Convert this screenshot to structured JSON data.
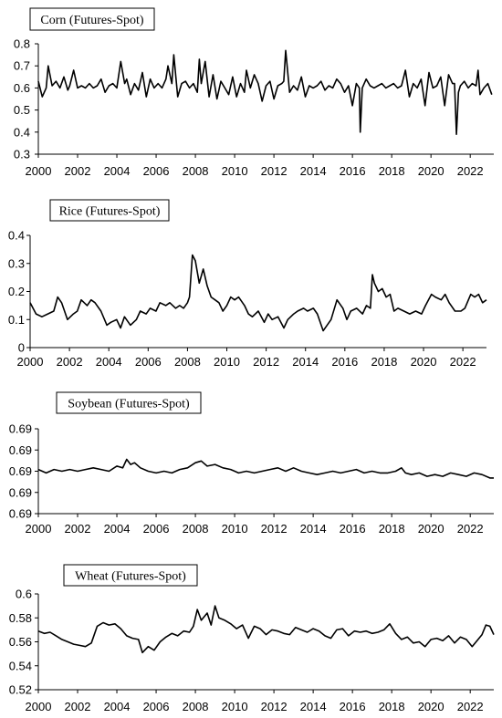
{
  "chart_data": [
    {
      "type": "line",
      "title": "Corn (Futures-Spot)",
      "x_ticks": [
        "2000",
        "2002",
        "2004",
        "2006",
        "2008",
        "2010",
        "2012",
        "2014",
        "2016",
        "2018",
        "2020",
        "2022"
      ],
      "y_ticks": [
        "0.8",
        "0.7",
        "0.6",
        "0.5",
        "0.4",
        "0.3"
      ],
      "ylim": [
        0.3,
        0.8
      ],
      "xlim": [
        2000,
        2023.2
      ],
      "grid": false,
      "series": [
        {
          "color": "#000000",
          "x": [
            2000,
            2000.2,
            2000.4,
            2000.5,
            2000.7,
            2000.9,
            2001.1,
            2001.3,
            2001.5,
            2001.6,
            2001.8,
            2002,
            2002.2,
            2002.4,
            2002.6,
            2002.8,
            2003,
            2003.2,
            2003.4,
            2003.6,
            2003.8,
            2004,
            2004.2,
            2004.4,
            2004.5,
            2004.7,
            2004.9,
            2005.1,
            2005.3,
            2005.5,
            2005.7,
            2005.9,
            2006.1,
            2006.3,
            2006.5,
            2006.6,
            2006.8,
            2006.9,
            2007.1,
            2007.3,
            2007.5,
            2007.7,
            2007.9,
            2008.1,
            2008.2,
            2008.3,
            2008.5,
            2008.7,
            2008.9,
            2009.1,
            2009.3,
            2009.5,
            2009.7,
            2009.9,
            2010.1,
            2010.3,
            2010.5,
            2010.6,
            2010.8,
            2011,
            2011.2,
            2011.4,
            2011.6,
            2011.8,
            2012,
            2012.2,
            2012.4,
            2012.5,
            2012.6,
            2012.8,
            2013,
            2013.2,
            2013.4,
            2013.6,
            2013.8,
            2014,
            2014.2,
            2014.4,
            2014.6,
            2014.8,
            2015,
            2015.2,
            2015.4,
            2015.6,
            2015.8,
            2016,
            2016.2,
            2016.35,
            2016.4,
            2016.5,
            2016.7,
            2016.9,
            2017.1,
            2017.3,
            2017.5,
            2017.7,
            2017.9,
            2018.1,
            2018.3,
            2018.5,
            2018.7,
            2018.9,
            2019.1,
            2019.3,
            2019.5,
            2019.7,
            2019.9,
            2020.1,
            2020.3,
            2020.5,
            2020.7,
            2020.9,
            2021.1,
            2021.2,
            2021.3,
            2021.4,
            2021.5,
            2021.7,
            2021.9,
            2022.1,
            2022.3,
            2022.4,
            2022.5,
            2022.7,
            2022.9,
            2023.1
          ],
          "y": [
            0.63,
            0.56,
            0.6,
            0.7,
            0.61,
            0.63,
            0.6,
            0.65,
            0.59,
            0.61,
            0.68,
            0.6,
            0.61,
            0.6,
            0.62,
            0.6,
            0.61,
            0.64,
            0.58,
            0.61,
            0.62,
            0.6,
            0.72,
            0.62,
            0.64,
            0.57,
            0.62,
            0.59,
            0.67,
            0.56,
            0.64,
            0.6,
            0.62,
            0.6,
            0.64,
            0.7,
            0.62,
            0.75,
            0.56,
            0.62,
            0.63,
            0.6,
            0.62,
            0.58,
            0.73,
            0.62,
            0.72,
            0.56,
            0.66,
            0.55,
            0.63,
            0.6,
            0.57,
            0.65,
            0.56,
            0.62,
            0.58,
            0.68,
            0.6,
            0.66,
            0.62,
            0.54,
            0.61,
            0.63,
            0.55,
            0.61,
            0.62,
            0.63,
            0.77,
            0.58,
            0.61,
            0.59,
            0.65,
            0.56,
            0.61,
            0.6,
            0.61,
            0.63,
            0.59,
            0.61,
            0.6,
            0.64,
            0.62,
            0.58,
            0.61,
            0.52,
            0.62,
            0.6,
            0.4,
            0.6,
            0.64,
            0.61,
            0.6,
            0.61,
            0.62,
            0.6,
            0.61,
            0.62,
            0.6,
            0.61,
            0.68,
            0.56,
            0.62,
            0.6,
            0.64,
            0.52,
            0.67,
            0.6,
            0.61,
            0.65,
            0.52,
            0.66,
            0.62,
            0.62,
            0.39,
            0.58,
            0.61,
            0.63,
            0.6,
            0.62,
            0.61,
            0.68,
            0.57,
            0.6,
            0.62,
            0.57
          ]
        }
      ]
    },
    {
      "type": "line",
      "title": "Rice (Futures-Spot)",
      "x_ticks": [
        "2000",
        "2002",
        "2004",
        "2006",
        "2008",
        "2010",
        "2012",
        "2014",
        "2016",
        "2018",
        "2020",
        "2022"
      ],
      "y_ticks": [
        "0.4",
        "0.3",
        "0.2",
        "0.1",
        "0"
      ],
      "ylim": [
        0,
        0.4
      ],
      "xlim": [
        2000,
        2023.2
      ],
      "grid": false,
      "series": [
        {
          "color": "#000000",
          "x": [
            2000,
            2000.3,
            2000.6,
            2000.9,
            2001.2,
            2001.4,
            2001.6,
            2001.9,
            2002.2,
            2002.4,
            2002.6,
            2002.9,
            2003.1,
            2003.3,
            2003.6,
            2003.9,
            2004.1,
            2004.4,
            2004.6,
            2004.8,
            2005.1,
            2005.4,
            2005.6,
            2005.9,
            2006.1,
            2006.4,
            2006.6,
            2006.9,
            2007.1,
            2007.4,
            2007.6,
            2007.8,
            2008,
            2008.1,
            2008.25,
            2008.4,
            2008.6,
            2008.8,
            2009,
            2009.2,
            2009.4,
            2009.6,
            2009.8,
            2010,
            2010.2,
            2010.4,
            2010.6,
            2010.9,
            2011.1,
            2011.3,
            2011.6,
            2011.9,
            2012.1,
            2012.3,
            2012.6,
            2012.9,
            2013.1,
            2013.4,
            2013.6,
            2013.9,
            2014.1,
            2014.4,
            2014.6,
            2014.9,
            2015.1,
            2015.3,
            2015.6,
            2015.9,
            2016.1,
            2016.3,
            2016.6,
            2016.9,
            2017.1,
            2017.3,
            2017.4,
            2017.5,
            2017.7,
            2017.9,
            2018.1,
            2018.3,
            2018.5,
            2018.7,
            2019,
            2019.3,
            2019.6,
            2019.9,
            2020.1,
            2020.4,
            2020.6,
            2020.9,
            2021.1,
            2021.3,
            2021.6,
            2021.9,
            2022.1,
            2022.4,
            2022.6,
            2022.8,
            2023,
            2023.2
          ],
          "y": [
            0.16,
            0.12,
            0.11,
            0.12,
            0.13,
            0.18,
            0.16,
            0.1,
            0.12,
            0.13,
            0.17,
            0.15,
            0.17,
            0.16,
            0.13,
            0.08,
            0.09,
            0.1,
            0.07,
            0.11,
            0.08,
            0.1,
            0.13,
            0.12,
            0.14,
            0.13,
            0.16,
            0.15,
            0.16,
            0.14,
            0.15,
            0.14,
            0.16,
            0.18,
            0.33,
            0.31,
            0.23,
            0.28,
            0.22,
            0.18,
            0.17,
            0.16,
            0.13,
            0.15,
            0.18,
            0.17,
            0.18,
            0.15,
            0.12,
            0.11,
            0.13,
            0.09,
            0.12,
            0.1,
            0.11,
            0.07,
            0.1,
            0.12,
            0.13,
            0.14,
            0.13,
            0.14,
            0.12,
            0.06,
            0.08,
            0.1,
            0.17,
            0.14,
            0.1,
            0.13,
            0.14,
            0.12,
            0.15,
            0.14,
            0.26,
            0.23,
            0.2,
            0.21,
            0.18,
            0.19,
            0.13,
            0.14,
            0.13,
            0.12,
            0.13,
            0.12,
            0.15,
            0.19,
            0.18,
            0.17,
            0.19,
            0.16,
            0.13,
            0.13,
            0.14,
            0.19,
            0.18,
            0.19,
            0.16,
            0.17
          ]
        }
      ]
    },
    {
      "type": "line",
      "title": "Soybean (Futures-Spot)",
      "x_ticks": [
        "2000",
        "2002",
        "2004",
        "2006",
        "2008",
        "2010",
        "2012",
        "2014",
        "2016",
        "2018",
        "2020",
        "2022"
      ],
      "y_ticks": [
        "0.69",
        "0.69",
        "0.69",
        "0.69",
        "0.69"
      ],
      "ylim": [
        0.6875,
        0.6925
      ],
      "xlim": [
        2000,
        2023.2
      ],
      "grid": false,
      "series": [
        {
          "color": "#000000",
          "x": [
            2000,
            2000.4,
            2000.8,
            2001.2,
            2001.6,
            2002,
            2002.4,
            2002.8,
            2003.2,
            2003.6,
            2004,
            2004.3,
            2004.5,
            2004.7,
            2004.9,
            2005.2,
            2005.6,
            2006,
            2006.4,
            2006.8,
            2007.2,
            2007.6,
            2008,
            2008.3,
            2008.6,
            2009,
            2009.4,
            2009.8,
            2010.2,
            2010.6,
            2011,
            2011.4,
            2011.8,
            2012.2,
            2012.6,
            2013,
            2013.4,
            2013.8,
            2014.2,
            2014.6,
            2015,
            2015.4,
            2015.8,
            2016.2,
            2016.6,
            2017,
            2017.4,
            2017.8,
            2018.2,
            2018.5,
            2018.7,
            2019,
            2019.4,
            2019.8,
            2020.2,
            2020.6,
            2021,
            2021.4,
            2021.8,
            2022.2,
            2022.6,
            2023,
            2023.2
          ],
          "y": [
            0.6901,
            0.6899,
            0.6901,
            0.69,
            0.6901,
            0.69,
            0.6901,
            0.6902,
            0.6901,
            0.69,
            0.6903,
            0.6902,
            0.6907,
            0.6904,
            0.6905,
            0.6902,
            0.69,
            0.6899,
            0.69,
            0.6899,
            0.6901,
            0.6902,
            0.6905,
            0.6906,
            0.6903,
            0.6904,
            0.6902,
            0.6901,
            0.6899,
            0.69,
            0.6899,
            0.69,
            0.6901,
            0.6902,
            0.69,
            0.6902,
            0.69,
            0.6899,
            0.6898,
            0.6899,
            0.69,
            0.6899,
            0.69,
            0.6901,
            0.6899,
            0.69,
            0.6899,
            0.6899,
            0.69,
            0.6902,
            0.6899,
            0.6898,
            0.6899,
            0.6897,
            0.6898,
            0.6897,
            0.6899,
            0.6898,
            0.6897,
            0.6899,
            0.6898,
            0.6896,
            0.6896
          ]
        }
      ]
    },
    {
      "type": "line",
      "title": "Wheat (Futures-Spot)",
      "x_ticks": [
        "2000",
        "2002",
        "2004",
        "2006",
        "2008",
        "2010",
        "2012",
        "2014",
        "2016",
        "2018",
        "2020",
        "2022"
      ],
      "y_ticks": [
        "0.6",
        "0.58",
        "0.56",
        "0.54",
        "0.52"
      ],
      "ylim": [
        0.52,
        0.6
      ],
      "xlim": [
        2000,
        2023.2
      ],
      "grid": false,
      "series": [
        {
          "color": "#000000",
          "x": [
            2000,
            2000.3,
            2000.6,
            2000.9,
            2001.2,
            2001.5,
            2001.8,
            2002.1,
            2002.4,
            2002.7,
            2003,
            2003.3,
            2003.6,
            2003.9,
            2004.2,
            2004.5,
            2004.8,
            2005.1,
            2005.3,
            2005.6,
            2005.9,
            2006.2,
            2006.5,
            2006.8,
            2007.1,
            2007.4,
            2007.7,
            2007.9,
            2008.1,
            2008.3,
            2008.6,
            2008.8,
            2009,
            2009.2,
            2009.5,
            2009.8,
            2010.1,
            2010.4,
            2010.7,
            2011,
            2011.3,
            2011.6,
            2011.9,
            2012.2,
            2012.5,
            2012.8,
            2013.1,
            2013.4,
            2013.7,
            2014,
            2014.3,
            2014.6,
            2014.9,
            2015.2,
            2015.5,
            2015.8,
            2016.1,
            2016.4,
            2016.7,
            2017,
            2017.3,
            2017.6,
            2017.9,
            2018.2,
            2018.5,
            2018.8,
            2019.1,
            2019.4,
            2019.7,
            2020,
            2020.3,
            2020.6,
            2020.9,
            2021.2,
            2021.5,
            2021.8,
            2022.1,
            2022.4,
            2022.6,
            2022.8,
            2023,
            2023.2
          ],
          "y": [
            0.569,
            0.567,
            0.568,
            0.565,
            0.562,
            0.56,
            0.558,
            0.557,
            0.556,
            0.559,
            0.573,
            0.576,
            0.574,
            0.575,
            0.571,
            0.565,
            0.563,
            0.562,
            0.551,
            0.556,
            0.553,
            0.56,
            0.564,
            0.567,
            0.565,
            0.569,
            0.568,
            0.573,
            0.587,
            0.578,
            0.584,
            0.574,
            0.59,
            0.58,
            0.578,
            0.575,
            0.571,
            0.574,
            0.563,
            0.573,
            0.571,
            0.566,
            0.57,
            0.569,
            0.567,
            0.566,
            0.572,
            0.57,
            0.568,
            0.571,
            0.569,
            0.565,
            0.563,
            0.57,
            0.571,
            0.565,
            0.569,
            0.568,
            0.569,
            0.567,
            0.568,
            0.57,
            0.575,
            0.567,
            0.562,
            0.564,
            0.559,
            0.56,
            0.556,
            0.562,
            0.563,
            0.561,
            0.565,
            0.559,
            0.564,
            0.562,
            0.556,
            0.562,
            0.566,
            0.574,
            0.573,
            0.566
          ]
        }
      ]
    }
  ]
}
